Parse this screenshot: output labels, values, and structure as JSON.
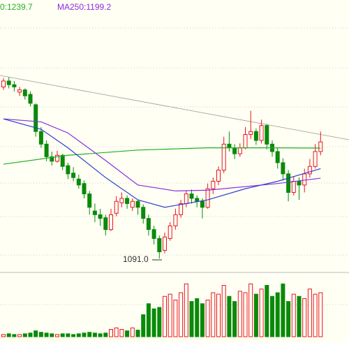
{
  "chart_data": {
    "type": "candlestick",
    "ylim": [
      1077,
      1439
    ],
    "up_color": "#e8141c",
    "down_color": "#0a8a0a",
    "ohlc": [
      [
        1322,
        1334,
        1318,
        1330
      ],
      [
        1330,
        1335,
        1320,
        1325
      ],
      [
        1325,
        1330,
        1316,
        1322
      ],
      [
        1315,
        1322,
        1310,
        1318
      ],
      [
        1318,
        1320,
        1305,
        1310
      ],
      [
        1312,
        1316,
        1296,
        1300
      ],
      [
        1298,
        1300,
        1255,
        1262
      ],
      [
        1262,
        1268,
        1240,
        1245
      ],
      [
        1245,
        1250,
        1222,
        1228
      ],
      [
        1228,
        1235,
        1216,
        1222
      ],
      [
        1222,
        1236,
        1220,
        1230
      ],
      [
        1230,
        1232,
        1210,
        1215
      ],
      [
        1216,
        1220,
        1198,
        1205
      ],
      [
        1206,
        1214,
        1195,
        1200
      ],
      [
        1198,
        1204,
        1185,
        1190
      ],
      [
        1192,
        1196,
        1172,
        1178
      ],
      [
        1178,
        1182,
        1150,
        1160
      ],
      [
        1155,
        1165,
        1140,
        1150
      ],
      [
        1150,
        1158,
        1135,
        1145
      ],
      [
        1146,
        1150,
        1122,
        1130
      ],
      [
        1130,
        1158,
        1128,
        1150
      ],
      [
        1152,
        1175,
        1148,
        1168
      ],
      [
        1166,
        1180,
        1160,
        1172
      ],
      [
        1172,
        1176,
        1158,
        1165
      ],
      [
        1160,
        1172,
        1155,
        1168
      ],
      [
        1168,
        1170,
        1150,
        1160
      ],
      [
        1160,
        1164,
        1138,
        1145
      ],
      [
        1145,
        1150,
        1122,
        1130
      ],
      [
        1130,
        1135,
        1110,
        1118
      ],
      [
        1118,
        1122,
        1091,
        1100
      ],
      [
        1102,
        1126,
        1098,
        1120
      ],
      [
        1118,
        1140,
        1115,
        1135
      ],
      [
        1135,
        1158,
        1130,
        1150
      ],
      [
        1150,
        1170,
        1146,
        1165
      ],
      [
        1165,
        1182,
        1160,
        1178
      ],
      [
        1178,
        1184,
        1165,
        1172
      ],
      [
        1172,
        1176,
        1160,
        1168
      ],
      [
        1168,
        1172,
        1145,
        1160
      ],
      [
        1160,
        1192,
        1158,
        1185
      ],
      [
        1185,
        1200,
        1178,
        1195
      ],
      [
        1195,
        1215,
        1190,
        1210
      ],
      [
        1210,
        1255,
        1206,
        1245
      ],
      [
        1245,
        1262,
        1235,
        1240
      ],
      [
        1240,
        1245,
        1225,
        1232
      ],
      [
        1232,
        1246,
        1228,
        1240
      ],
      [
        1240,
        1268,
        1238,
        1258
      ],
      [
        1258,
        1290,
        1252,
        1262
      ],
      [
        1262,
        1266,
        1244,
        1250
      ],
      [
        1250,
        1278,
        1246,
        1270
      ],
      [
        1270,
        1272,
        1238,
        1245
      ],
      [
        1245,
        1250,
        1228,
        1235
      ],
      [
        1235,
        1240,
        1212,
        1220
      ],
      [
        1220,
        1226,
        1196,
        1205
      ],
      [
        1205,
        1210,
        1168,
        1180
      ],
      [
        1180,
        1202,
        1176,
        1195
      ],
      [
        1195,
        1200,
        1170,
        1190
      ],
      [
        1190,
        1212,
        1180,
        1205
      ],
      [
        1205,
        1225,
        1200,
        1215
      ],
      [
        1215,
        1245,
        1212,
        1235
      ],
      [
        1235,
        1262,
        1230,
        1248
      ]
    ],
    "volume": {
      "ylim": [
        0,
        80
      ],
      "values": [
        3,
        4,
        3,
        3,
        4,
        5,
        8,
        6,
        5,
        4,
        3,
        4,
        4,
        3,
        4,
        5,
        6,
        5,
        4,
        5,
        10,
        12,
        10,
        8,
        12,
        9,
        30,
        45,
        38,
        40,
        55,
        58,
        50,
        60,
        72,
        48,
        52,
        45,
        50,
        60,
        58,
        70,
        55,
        48,
        62,
        60,
        72,
        58,
        65,
        70,
        55,
        60,
        72,
        48,
        58,
        55,
        52,
        65,
        58,
        60
      ]
    },
    "ma_lines": [
      {
        "label": "0:1239.7",
        "color": "#22b022",
        "x": [
          0,
          12,
          25,
          38,
          51,
          59
        ],
        "values": [
          1218,
          1230,
          1237,
          1240,
          1240,
          1239.7
        ]
      },
      {
        "label": "MA250:1199.2",
        "color": "#8a2be2",
        "x": [
          0,
          7,
          12,
          19,
          25,
          32,
          38,
          51,
          59
        ],
        "values": [
          1279,
          1275,
          1260,
          1223,
          1190,
          1182,
          1183,
          1192,
          1199.2
        ]
      },
      {
        "color": "#2b3fd0",
        "x": [
          0,
          7,
          12,
          19,
          25,
          30,
          38,
          45,
          51,
          59
        ],
        "values": [
          1279,
          1265,
          1240,
          1200,
          1170,
          1160,
          1170,
          1185,
          1195,
          1212
        ]
      }
    ],
    "low_label": "1091.0"
  }
}
